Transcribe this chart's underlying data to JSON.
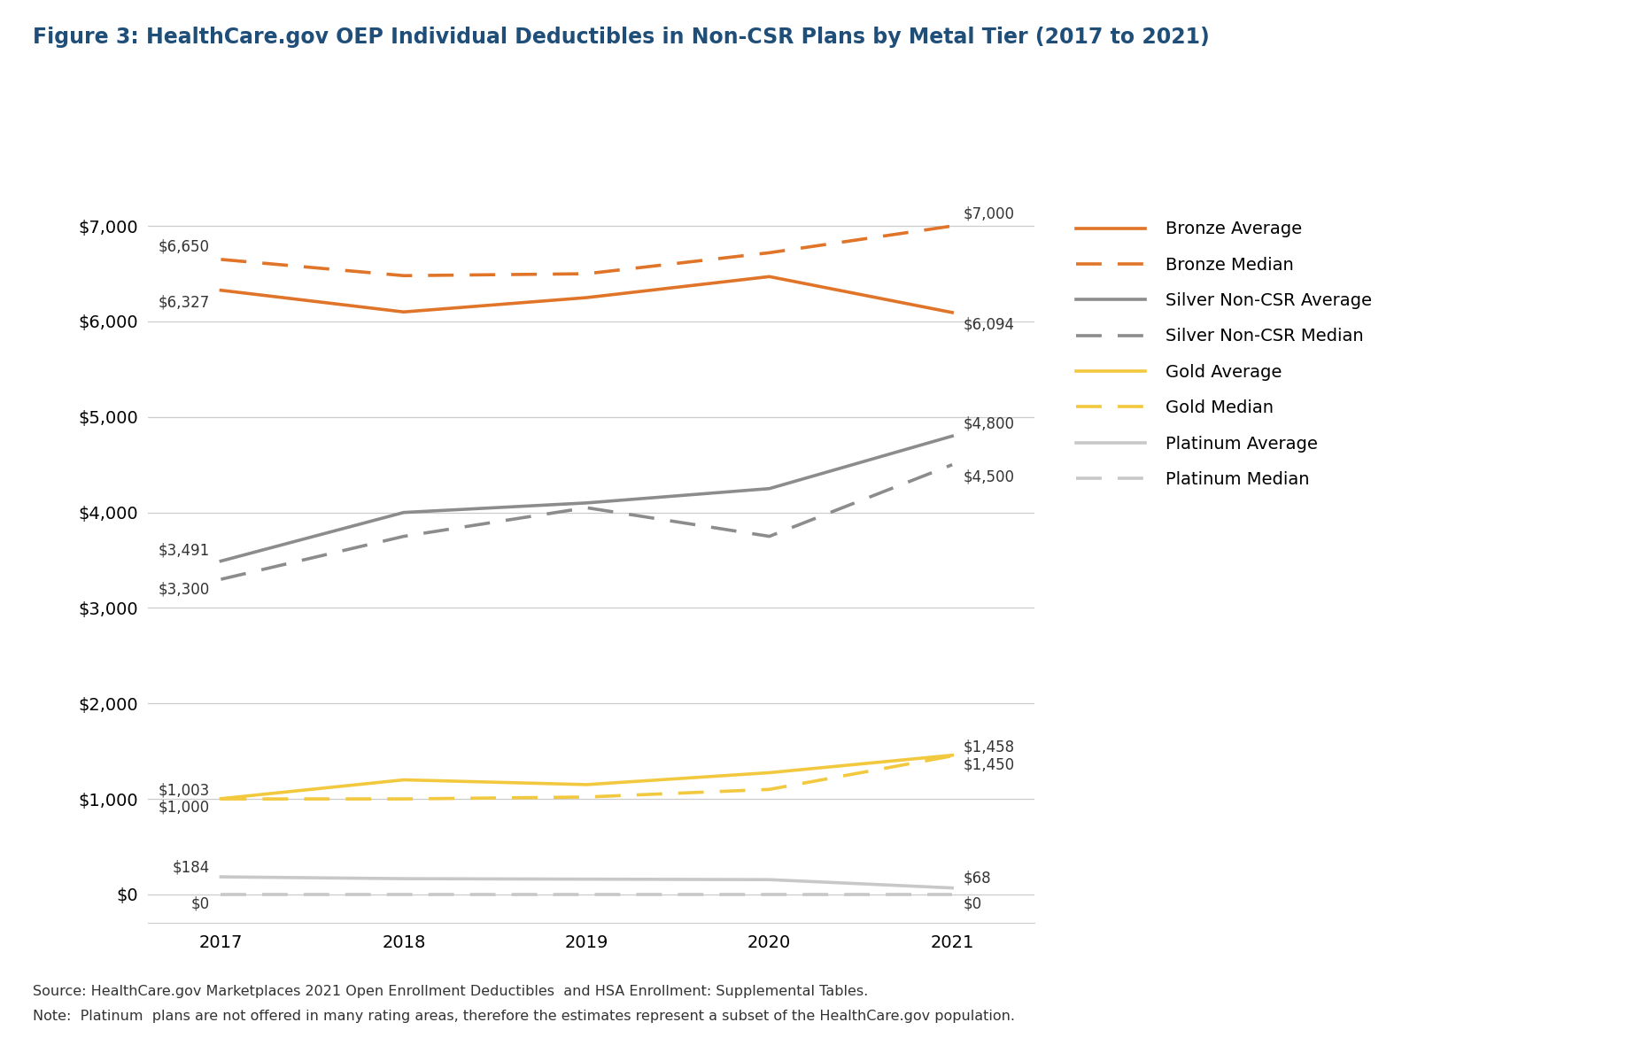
{
  "title": "Figure 3: HealthCare.gov OEP Individual Deductibles in Non-CSR Plans by Metal Tier (2017 to 2021)",
  "years": [
    2017,
    2018,
    2019,
    2020,
    2021
  ],
  "bronze_avg": [
    6327,
    6100,
    6250,
    6470,
    6094
  ],
  "bronze_med": [
    6650,
    6480,
    6500,
    6720,
    7000
  ],
  "silver_avg": [
    3491,
    4000,
    4100,
    4250,
    4800
  ],
  "silver_med": [
    3300,
    3750,
    4050,
    3750,
    4500
  ],
  "gold_avg": [
    1003,
    1200,
    1150,
    1275,
    1458
  ],
  "gold_med": [
    1000,
    1000,
    1020,
    1100,
    1450
  ],
  "plat_avg": [
    184,
    165,
    160,
    155,
    68
  ],
  "plat_med": [
    0,
    0,
    0,
    0,
    0
  ],
  "label_start": {
    "bronze_med": "$6,650",
    "bronze_avg": "$6,327",
    "silver_avg": "$3,491",
    "silver_med": "$3,300",
    "gold_avg": "$1,003",
    "gold_med": "$1,000",
    "plat_avg": "$184",
    "plat_med": "$0"
  },
  "label_end": {
    "bronze_med": "$7,000",
    "bronze_avg": "$6,094",
    "silver_avg": "$4,800",
    "silver_med": "$4,500",
    "gold_avg": "$1,458",
    "gold_med": "$1,450",
    "plat_avg": "$68",
    "plat_med": "$0"
  },
  "colors": {
    "bronze": "#E07428",
    "silver": "#8C8C8C",
    "gold": "#F2C93E",
    "plat": "#C8C8C8"
  },
  "legend_entries": [
    "Bronze Average",
    "Bronze Median",
    "Silver Non-CSR Average",
    "Silver Non-CSR Median",
    "Gold Average",
    "Gold Median",
    "Platinum Average",
    "Platinum Median"
  ],
  "source_text": "Source: HealthCare.gov Marketplaces 2021 Open Enrollment Deductibles  and HSA Enrollment: Supplemental Tables.",
  "note_text": "Note:  Platinum  plans are not offered in many rating areas, therefore the estimates represent a subset of the HealthCare.gov population.",
  "title_color": "#1F4E79",
  "bg_color": "#FFFFFF"
}
